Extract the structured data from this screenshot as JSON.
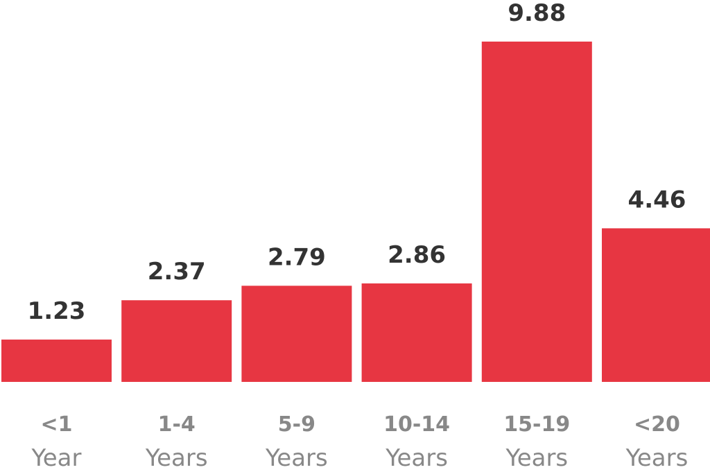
{
  "colors": {
    "bar": "#e73642",
    "value_text": "#333333",
    "category_text": "#888888",
    "background": "#ffffff"
  },
  "chart_data": {
    "type": "bar",
    "categories": [
      [
        "<1",
        "Year"
      ],
      [
        "1-4",
        "Years"
      ],
      [
        "5-9",
        "Years"
      ],
      [
        "10-14",
        "Years"
      ],
      [
        "15-19",
        "Years"
      ],
      [
        "<20",
        "Years"
      ]
    ],
    "values": [
      1.23,
      2.37,
      2.79,
      2.86,
      9.88,
      4.46
    ],
    "value_labels": [
      "1.23",
      "2.37",
      "2.79",
      "2.86",
      "9.88",
      "4.46"
    ],
    "ylim": [
      0,
      9.88
    ],
    "grid": false,
    "legend": "none"
  }
}
